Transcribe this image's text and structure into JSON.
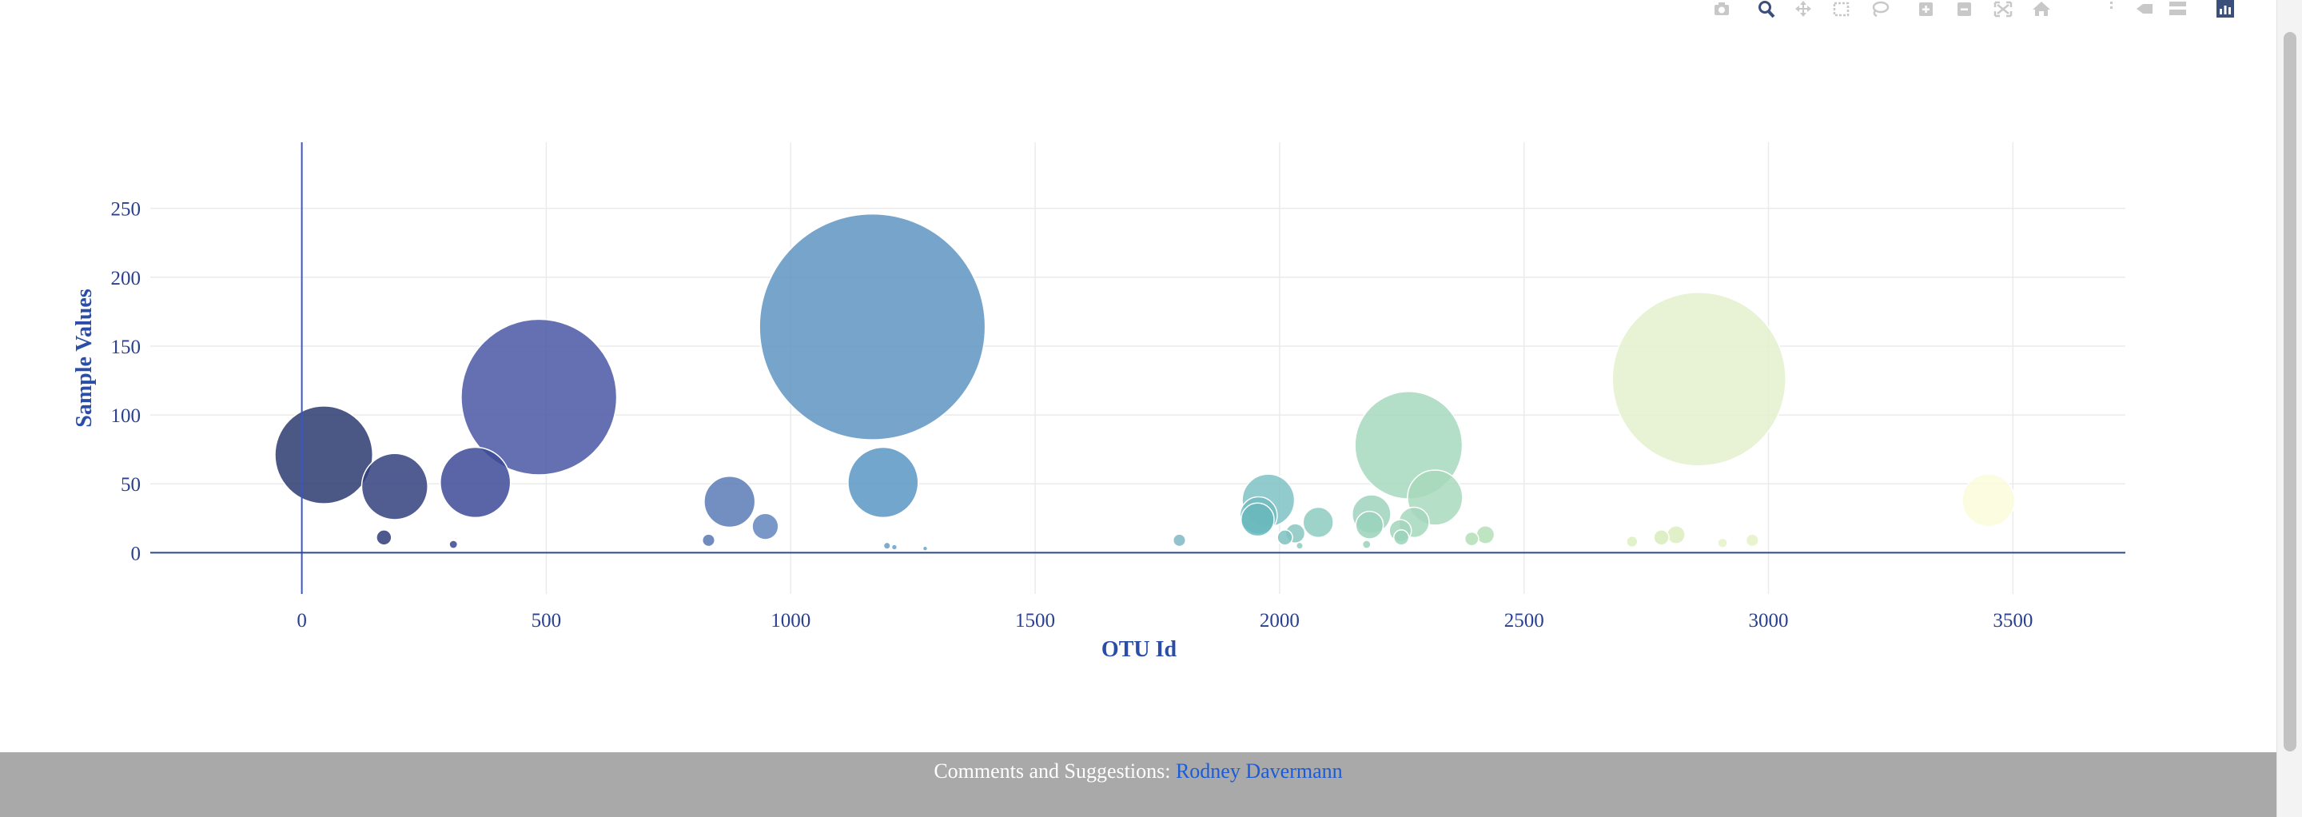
{
  "modebar": {
    "icons": [
      "camera-icon",
      "zoom-icon",
      "pan-icon",
      "box-select-icon",
      "lasso-icon",
      "zoom-in-icon",
      "zoom-out-icon",
      "autoscale-icon",
      "home-icon",
      "spike-lines-icon",
      "hover-closest-icon",
      "hover-compare-icon",
      "plotly-logo-icon"
    ],
    "icon_color": "#c8c8c8",
    "active_color": "#3a4f7a"
  },
  "chart_data": {
    "type": "scatter",
    "mode": "markers",
    "xlabel": "OTU Id",
    "ylabel": "Sample Values",
    "xlim": [
      -310,
      3730
    ],
    "ylim": [
      -30,
      298
    ],
    "x_ticks": [
      0,
      500,
      1000,
      1500,
      2000,
      2500,
      3000,
      3500
    ],
    "y_ticks": [
      0,
      50,
      100,
      150,
      200,
      250
    ],
    "grid": true,
    "colorscale": "YlGnBu (reversed)",
    "series": [
      {
        "marker_size_basis": "sample value",
        "points": [
          {
            "x": 45,
            "y": 71,
            "color": "#2c3a6e"
          },
          {
            "x": 190,
            "y": 48,
            "color": "#323f7e"
          },
          {
            "x": 355,
            "y": 51,
            "color": "#3c4a96"
          },
          {
            "x": 485,
            "y": 113,
            "color": "#4a57a6"
          },
          {
            "x": 168,
            "y": 11,
            "color": "#2f3c7a"
          },
          {
            "x": 310,
            "y": 6,
            "color": "#3a4891"
          },
          {
            "x": 875,
            "y": 37,
            "color": "#5a7ab6"
          },
          {
            "x": 948,
            "y": 19,
            "color": "#6285bd"
          },
          {
            "x": 832,
            "y": 9,
            "color": "#5877b3"
          },
          {
            "x": 1167,
            "y": 164,
            "color": "#5f94c2"
          },
          {
            "x": 1189,
            "y": 51,
            "color": "#5b96c4"
          },
          {
            "x": 1197,
            "y": 5,
            "color": "#6a9ec8"
          },
          {
            "x": 1212,
            "y": 4,
            "color": "#6aa0c8"
          },
          {
            "x": 1275,
            "y": 3,
            "color": "#6aa4c8"
          },
          {
            "x": 1795,
            "y": 9,
            "color": "#7fb7c6"
          },
          {
            "x": 1977,
            "y": 38,
            "color": "#7fc2c4"
          },
          {
            "x": 1957,
            "y": 27,
            "color": "#72bcc0"
          },
          {
            "x": 1955,
            "y": 24,
            "color": "#68b8bc"
          },
          {
            "x": 2011,
            "y": 11,
            "color": "#7ec2c0"
          },
          {
            "x": 2032,
            "y": 14,
            "color": "#87c6c0"
          },
          {
            "x": 2079,
            "y": 22,
            "color": "#8ccbbf"
          },
          {
            "x": 2041,
            "y": 5,
            "color": "#8fccbe"
          },
          {
            "x": 2264,
            "y": 78,
            "color": "#a6d8bd"
          },
          {
            "x": 2318,
            "y": 40,
            "color": "#a8d9bc"
          },
          {
            "x": 2188,
            "y": 28,
            "color": "#9ed3bc"
          },
          {
            "x": 2275,
            "y": 22,
            "color": "#a4d7bc"
          },
          {
            "x": 2184,
            "y": 20,
            "color": "#9ad2bb"
          },
          {
            "x": 2247,
            "y": 16,
            "color": "#a2d6bc"
          },
          {
            "x": 2249,
            "y": 11,
            "color": "#9ad3ba"
          },
          {
            "x": 2178,
            "y": 6,
            "color": "#9ad2bb"
          },
          {
            "x": 2393,
            "y": 10,
            "color": "#b2deb6"
          },
          {
            "x": 2421,
            "y": 13,
            "color": "#b4dfb6"
          },
          {
            "x": 2858,
            "y": 126,
            "color": "#e3f1cc"
          },
          {
            "x": 2781,
            "y": 11,
            "color": "#d8ecbc"
          },
          {
            "x": 2811,
            "y": 13,
            "color": "#dcedbe"
          },
          {
            "x": 2721,
            "y": 8,
            "color": "#dcefc0"
          },
          {
            "x": 2967,
            "y": 9,
            "color": "#e5f1c6"
          },
          {
            "x": 2906,
            "y": 7,
            "color": "#e6f2c8"
          },
          {
            "x": 3450,
            "y": 38,
            "color": "#fbfbdb"
          }
        ]
      }
    ]
  },
  "footer": {
    "label": "Comments and Suggestions:",
    "link_text": "Rodney Davermann"
  }
}
